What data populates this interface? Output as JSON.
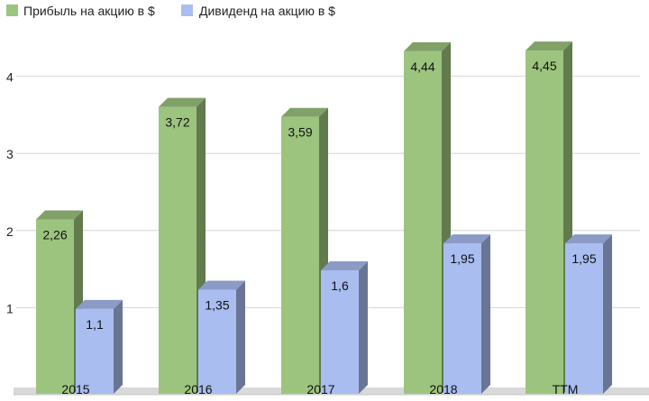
{
  "chart_data": {
    "type": "bar",
    "style": "3d-column",
    "categories": [
      "2015",
      "2016",
      "2017",
      "2018",
      "TTM"
    ],
    "series": [
      {
        "name": "Прибыль на акцию в $",
        "values": [
          2.26,
          3.72,
          3.59,
          4.44,
          4.45
        ],
        "labels": [
          "2,26",
          "3,72",
          "3,59",
          "4,44",
          "4,45"
        ],
        "color": "#9cc47e"
      },
      {
        "name": "Дивиденд на акцию в $",
        "values": [
          1.1,
          1.35,
          1.6,
          1.95,
          1.95
        ],
        "labels": [
          "1,1",
          "1,35",
          "1,6",
          "1,95",
          "1,95"
        ],
        "color": "#a9bdf1"
      }
    ],
    "y_ticks": [
      "1",
      "2",
      "3",
      "4"
    ],
    "ylim": [
      0,
      4.8
    ],
    "grid": true,
    "legend_position": "top-left",
    "title": "",
    "xlabel": "",
    "ylabel": ""
  }
}
